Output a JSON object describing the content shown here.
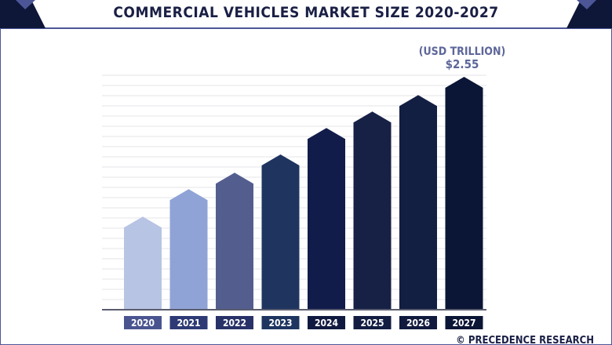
{
  "colors": {
    "frame_dark": "#0e1738",
    "frame_accent": "#4c5697",
    "grid": "#e6e6ea",
    "axis": "#5a5d6e",
    "unit_text": "#5d6699",
    "bar_colors": [
      "#b8c4e3",
      "#8fa3d6",
      "#535e8f",
      "#1f3560",
      "#121c4a",
      "#172146",
      "#121e42",
      "#0b1535"
    ],
    "label_colors": [
      "#4a5590",
      "#2d3a75",
      "#283268",
      "#1e3560",
      "#101a40",
      "#131d42",
      "#101a3e",
      "#0b1535"
    ]
  },
  "source": "© PRECEDENCE RESEARCH",
  "chart_data": {
    "type": "bar",
    "title": "COMMERCIAL VEHICLES MARKET SIZE 2020-2027",
    "unit_label": "(USD TRILLION)",
    "categories": [
      "2020",
      "2021",
      "2022",
      "2023",
      "2024",
      "2025",
      "2026",
      "2027"
    ],
    "values": [
      1.02,
      1.32,
      1.5,
      1.7,
      1.99,
      2.17,
      2.35,
      2.55
    ],
    "data_labels": {
      "2027": "$2.55"
    },
    "ylim": [
      0,
      2.55
    ],
    "grid": true,
    "bar_shape": "arrow"
  }
}
